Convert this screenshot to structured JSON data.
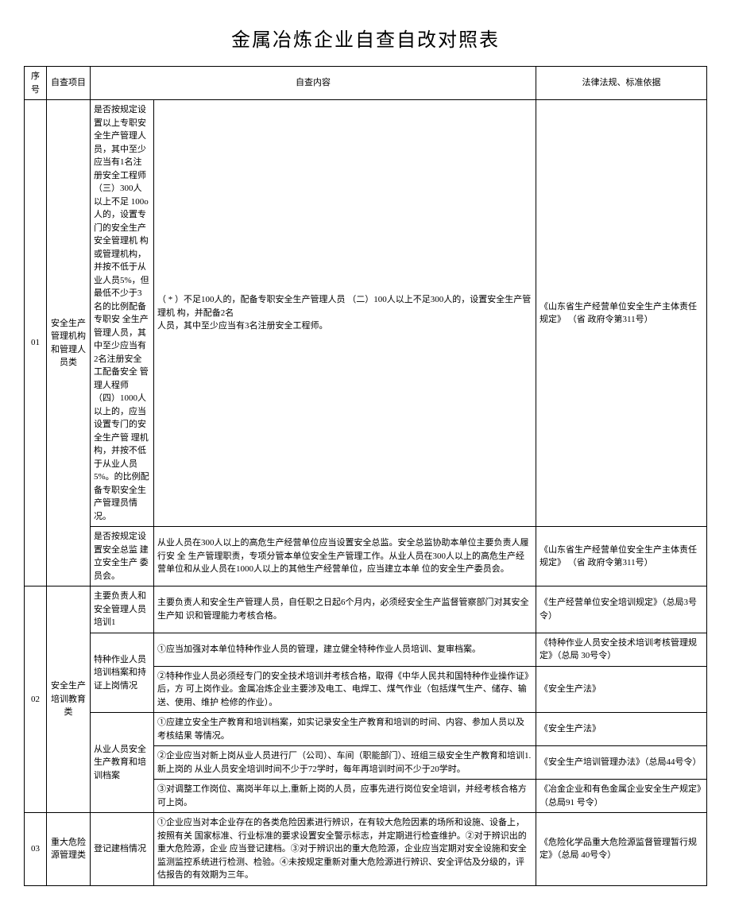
{
  "title": "金属冶炼企业自查自改对照表",
  "headers": {
    "seq": "序号",
    "proj": "自查项目",
    "content": "自查内容",
    "law": "法律法规、标准依据"
  },
  "rows": [
    {
      "seq": "01",
      "proj": "安全生产 管理机构 和管理人 员类",
      "sub1": "是否按规定设 置以上专职安全生产管理人员，其中至少应当有1名注册安全工程师 （三）300人以上不足 100o人的，设置专门的安全生产安全管理机 构或管理机构，并按不低于从业人员5%，但最低不少于3名的比例配备专职安 全生产管理人员，其中至少应当有2名注册安全工配备安全 管理人程师 （四）1000人以上的，应当设置专门的安全生产管 理机构，并按不低于从业人员5%。的比例配备专职安全生产管理员情 况。",
      "content1": "（ * ）不足100人的，配备专职安全生产管理人员 （二）100人以上不足300人的，设置安全生产管理机 构，并配备2名",
      "content1b": "人员，其中至少应当有3名注册安全工程师。",
      "law1": "《山东省生产经营单位安全生产主体责任规定》 （省 政府令第311号）",
      "sub2": "是否按规定设 置安全总监 建立安全生产 委员会。",
      "content2": "从业人员在300人以上的高危生产经营单位应当设置安全总监。安全总监协助本单位主要负责人履行安 全 生产管理职责，专项分管本单位安全生产管理工作。从业人员在300人以上的高危生产经营单位和从业人员在1000人以上的其他生产经营单位，应当建立本单 位的安全生产委员会。",
      "law2": "《山东省生产经营单位安全生产主体责任规定》 （省 政府令第311号）"
    },
    {
      "seq": "02",
      "proj": "安全生产 培训教育 类",
      "sub1": "主要负责人和 安全管理人员 培训1",
      "content1": "主要负责人和安全生产管理人员，自任职之日起6个月内，必须经安全生产监督管察部门对其安全生产知 识和管理能力考核合格。",
      "law1": "《生产经营单位安全培训规定》（总局3号令）",
      "sub2": "特种作业人员 培训档案和持 证上岗情况",
      "content2a": "①应当加强对本单位特种作业人员的管理，建立健全特种作业人员培训、复审档案。",
      "law2a": "《特种作业人员安全技术培训考核管理规定》（总局 30号令）",
      "content2b": "②特种作业人员必须经专门的安全技术培训并考核合格，取得《中华人民共和国特种作业操作证》后，方 可上岗作业。金属冶炼企业主要涉及电工、电焊工、煤气作业（包括煤气生产、储存、输送、使用、维护 检修的作业）。",
      "law2b": "《安全生产法》",
      "sub3": "从业人员安全 生产教育和培 训档案",
      "content3a": "①应建立安全生产教育和培训档案，如实记录安全生产教育和培训的时间、内容、参加人员以及考核结果 等情况。",
      "law3a": "《安全生产法》",
      "content3b": "②企业应当对新上岗从业人员进行厂（公司）、车间（职能部门）、班组三级安全生产教育和培训1.新上岗的 从业人员安全培训时间不少于72学时，每年再培训时间不少于20学时。",
      "law3b": "《安全生产培训管理办法》（总局44号令）",
      "content3c": "③对调整工作岗位、离岗半年以上,重新上岗的人员，应事先进行岗位安全培训，并经考核合格方可上岗。",
      "law3c": "《冶金企业和有色金属企业安全生产规定》（总局91 号令）"
    },
    {
      "seq": "03",
      "proj": "重大危险 源管理类",
      "sub1": "登记建档情况",
      "content1": "①企业应当对本企业存在的各类危险因素进行辨识，在有较大危险因素的场所和设施、设备上，按照有关 国家标准、行业标准的要求设置安全警示标志，并定期进行检查维护。②对于辨识出的重大危险源，企业 应当登记建档。③对于辨识出的重大危险源，企业应当定期对安全设施和安全监测监控系统进行检测、检验。④未按规定重新对重大危险源进行辨识、安全评估及分级的，评估报告的有效期为三年。",
      "law1": "《危险化学品重大危险源监督管理暂行规定》（总局 40号令）"
    }
  ]
}
